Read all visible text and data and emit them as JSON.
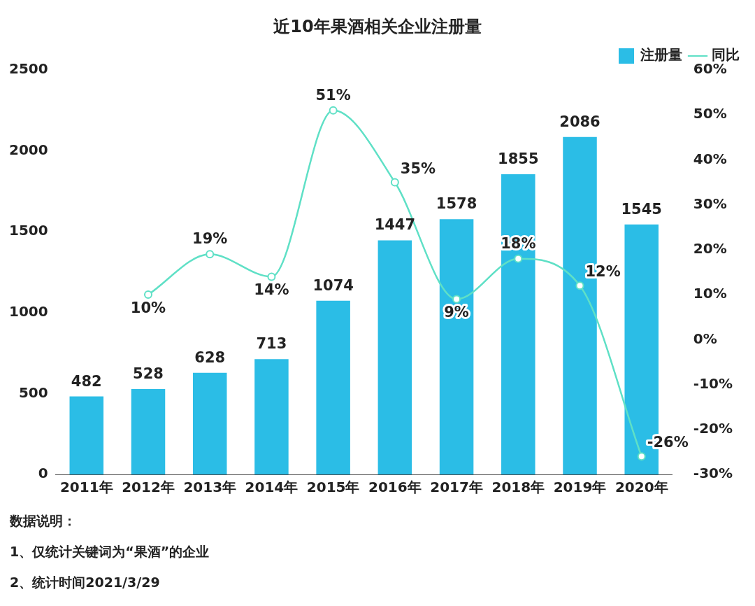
{
  "chart_data": {
    "type": "bar",
    "title": "近10年果酒相关企业注册量",
    "categories": [
      "2011年",
      "2012年",
      "2013年",
      "2014年",
      "2015年",
      "2016年",
      "2017年",
      "2018年",
      "2019年",
      "2020年"
    ],
    "series": [
      {
        "name": "注册量",
        "color": "#2bbde6",
        "values": [
          482,
          528,
          628,
          713,
          1074,
          1447,
          1578,
          1855,
          2086,
          1545
        ],
        "value_labels": [
          "482",
          "528",
          "628",
          "713",
          "1074",
          "1447",
          "1578",
          "1855",
          "2086",
          "1545"
        ]
      },
      {
        "name": "同比",
        "type": "line",
        "axis": "y2",
        "color": "#5fe0c6",
        "marker": "circle",
        "values": [
          null,
          10,
          19,
          14,
          51,
          35,
          9,
          18,
          12,
          -26
        ],
        "value_labels": [
          null,
          "10%",
          "19%",
          "14%",
          "51%",
          "35%",
          "9%",
          "18%",
          "12%",
          "-26%"
        ]
      }
    ],
    "ylim": [
      0,
      2500
    ],
    "yticks": [
      0,
      500,
      1000,
      1500,
      2000,
      2500
    ],
    "y2lim": [
      -30,
      60
    ],
    "y2ticks": [
      {
        "value": -30,
        "label": "-30%"
      },
      {
        "value": -20,
        "label": "-20%"
      },
      {
        "value": -10,
        "label": "-10%"
      },
      {
        "value": 0,
        "label": "0%"
      },
      {
        "value": 10,
        "label": "10%"
      },
      {
        "value": 20,
        "label": "20%"
      },
      {
        "value": 30,
        "label": "30%"
      },
      {
        "value": 40,
        "label": "40%"
      },
      {
        "value": 50,
        "label": "50%"
      },
      {
        "value": 60,
        "label": "60%"
      }
    ],
    "grid": false,
    "legend": "top right",
    "annotations": [
      "数据说明：",
      "1、仅统计关键词为“果酒”的企业",
      "2、统计时间2021/3/29"
    ]
  }
}
